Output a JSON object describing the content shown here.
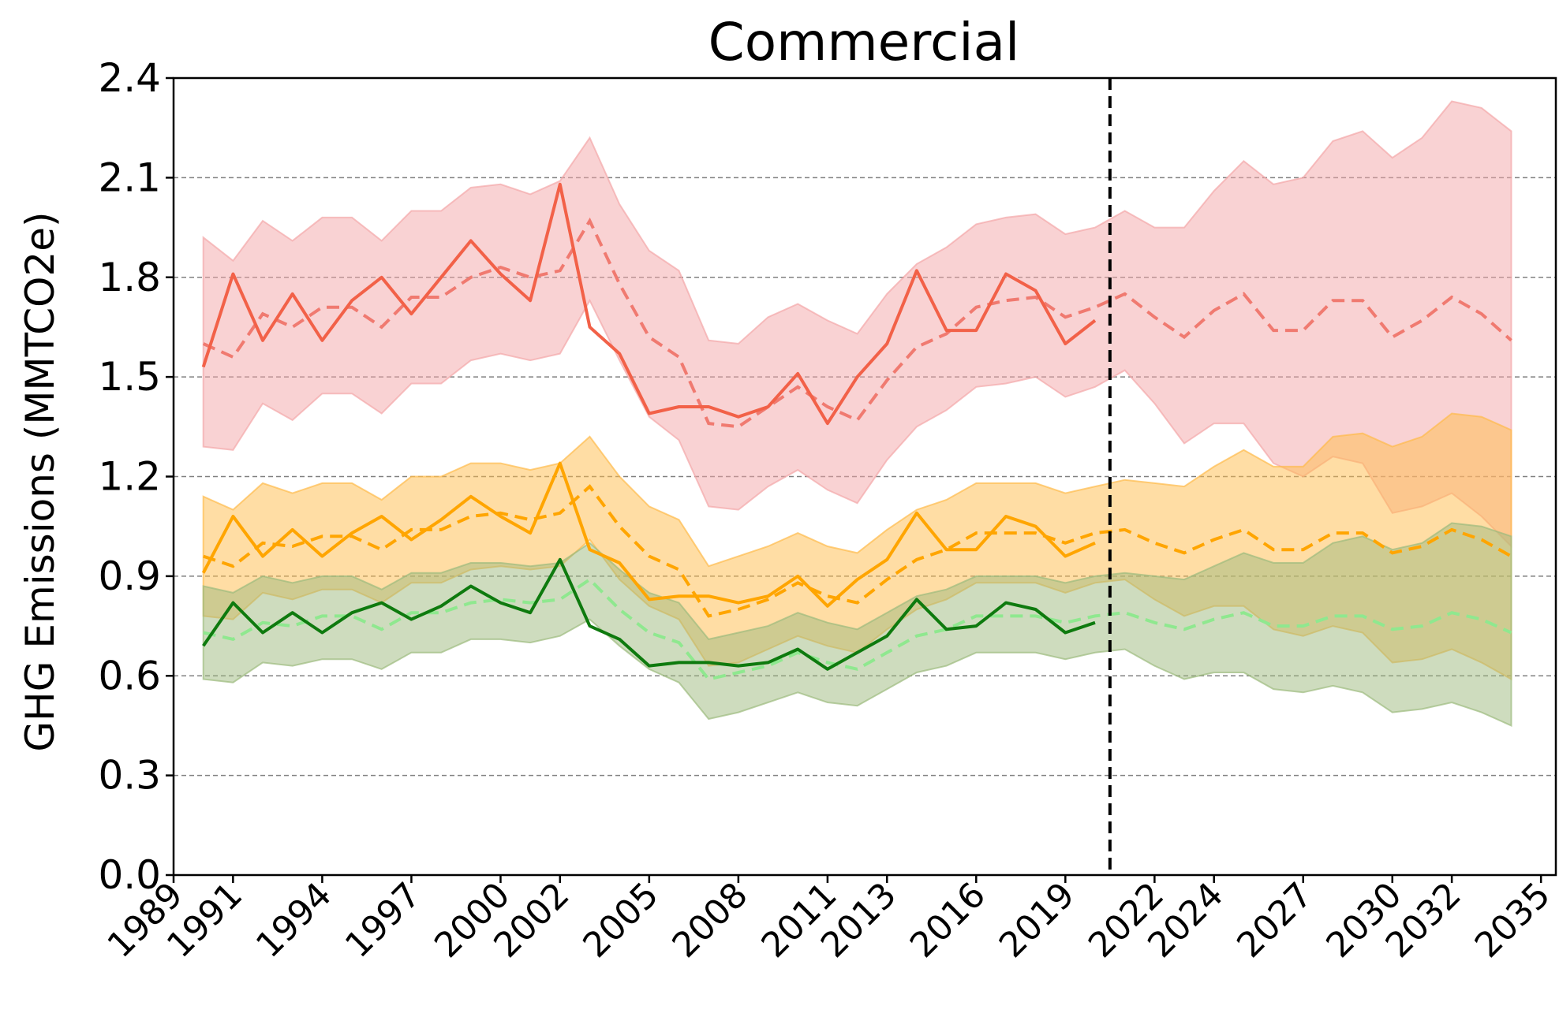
{
  "chart_data": {
    "type": "line",
    "title": "Commercial",
    "ylabel": "GHG Emissions (MMTCO2e)",
    "xlabel": "",
    "ylim": [
      0,
      2.4
    ],
    "xlim": [
      1989.0,
      2035.5
    ],
    "grid": "horizontal-dashed",
    "yticks": [
      0.0,
      0.3,
      0.6,
      0.9,
      1.2,
      1.5,
      1.8,
      2.1,
      2.4
    ],
    "ytick_labels": [
      "0.0",
      "0.3",
      "0.6",
      "0.9",
      "1.2",
      "1.5",
      "1.8",
      "2.1",
      "2.4"
    ],
    "xticks": [
      1989,
      1991,
      1994,
      1997,
      2000,
      2002,
      2005,
      2008,
      2011,
      2013,
      2016,
      2019,
      2022,
      2024,
      2027,
      2030,
      2032,
      2035
    ],
    "xtick_labels": [
      "1989",
      "1991",
      "1994",
      "1997",
      "2000",
      "2002",
      "2005",
      "2008",
      "2011",
      "2013",
      "2016",
      "2019",
      "2022",
      "2024",
      "2027",
      "2030",
      "2032",
      "2035"
    ],
    "split_year": 2020.5,
    "colors": {
      "red": "#f26148",
      "red_fit": "#f07a70",
      "red_band": "#f4a6a8",
      "orange": "#ffa500",
      "orange_band": "#ffbb4a",
      "green": "#0e7a0e",
      "green_fit": "#8fe88f",
      "green_band": "#9dba7d",
      "split_line": "#000000",
      "grid": "#808080"
    },
    "series": [
      {
        "color_key": "red",
        "observed_years": [
          1990,
          1991,
          1992,
          1993,
          1994,
          1995,
          1996,
          1997,
          1998,
          1999,
          2000,
          2001,
          2002,
          2003,
          2004,
          2005,
          2006,
          2007,
          2008,
          2009,
          2010,
          2011,
          2012,
          2013,
          2014,
          2015,
          2016,
          2017,
          2018,
          2019,
          2020
        ],
        "observed": [
          1.53,
          1.81,
          1.61,
          1.75,
          1.61,
          1.73,
          1.8,
          1.69,
          1.8,
          1.91,
          1.81,
          1.73,
          2.08,
          1.65,
          1.57,
          1.39,
          1.41,
          1.41,
          1.38,
          1.41,
          1.51,
          1.36,
          1.5,
          1.6,
          1.82,
          1.64,
          1.64,
          1.81,
          1.76,
          1.6,
          1.67
        ],
        "fit_years": [
          1990,
          1991,
          1992,
          1993,
          1994,
          1995,
          1996,
          1997,
          1998,
          1999,
          2000,
          2001,
          2002,
          2003,
          2004,
          2005,
          2006,
          2007,
          2008,
          2009,
          2010,
          2011,
          2012,
          2013,
          2014,
          2015,
          2016,
          2017,
          2018,
          2019,
          2020,
          2021,
          2022,
          2023,
          2024,
          2025,
          2026,
          2027,
          2028,
          2029,
          2030,
          2031,
          2032,
          2033,
          2034
        ],
        "fit": [
          1.6,
          1.56,
          1.69,
          1.65,
          1.71,
          1.71,
          1.65,
          1.74,
          1.74,
          1.8,
          1.83,
          1.8,
          1.82,
          1.97,
          1.78,
          1.62,
          1.56,
          1.36,
          1.35,
          1.41,
          1.47,
          1.41,
          1.37,
          1.49,
          1.59,
          1.63,
          1.71,
          1.73,
          1.74,
          1.68,
          1.71,
          1.75,
          1.68,
          1.62,
          1.7,
          1.75,
          1.64,
          1.64,
          1.73,
          1.73,
          1.62,
          1.67,
          1.74,
          1.69,
          1.61
        ],
        "band_upper": [
          1.92,
          1.85,
          1.97,
          1.91,
          1.98,
          1.98,
          1.91,
          2.0,
          2.0,
          2.07,
          2.08,
          2.05,
          2.09,
          2.22,
          2.02,
          1.88,
          1.82,
          1.61,
          1.6,
          1.68,
          1.72,
          1.67,
          1.63,
          1.75,
          1.84,
          1.89,
          1.96,
          1.98,
          1.99,
          1.93,
          1.95,
          2.0,
          1.95,
          1.95,
          2.06,
          2.15,
          2.08,
          2.1,
          2.21,
          2.24,
          2.16,
          2.22,
          2.33,
          2.31,
          2.24
        ],
        "band_lower": [
          1.29,
          1.28,
          1.42,
          1.37,
          1.45,
          1.45,
          1.39,
          1.48,
          1.48,
          1.55,
          1.57,
          1.55,
          1.57,
          1.73,
          1.55,
          1.38,
          1.31,
          1.11,
          1.1,
          1.17,
          1.22,
          1.16,
          1.12,
          1.25,
          1.35,
          1.4,
          1.47,
          1.48,
          1.5,
          1.44,
          1.47,
          1.52,
          1.42,
          1.3,
          1.36,
          1.36,
          1.24,
          1.2,
          1.26,
          1.24,
          1.09,
          1.11,
          1.15,
          1.08,
          0.99
        ]
      },
      {
        "color_key": "orange",
        "observed_years": [
          1990,
          1991,
          1992,
          1993,
          1994,
          1995,
          1996,
          1997,
          1998,
          1999,
          2000,
          2001,
          2002,
          2003,
          2004,
          2005,
          2006,
          2007,
          2008,
          2009,
          2010,
          2011,
          2012,
          2013,
          2014,
          2015,
          2016,
          2017,
          2018,
          2019,
          2020
        ],
        "observed": [
          0.91,
          1.08,
          0.96,
          1.04,
          0.96,
          1.03,
          1.08,
          1.01,
          1.07,
          1.14,
          1.08,
          1.03,
          1.24,
          0.98,
          0.94,
          0.83,
          0.84,
          0.84,
          0.82,
          0.84,
          0.9,
          0.81,
          0.89,
          0.95,
          1.09,
          0.98,
          0.98,
          1.08,
          1.05,
          0.96,
          1.0
        ],
        "fit_years": [
          1990,
          1991,
          1992,
          1993,
          1994,
          1995,
          1996,
          1997,
          1998,
          1999,
          2000,
          2001,
          2002,
          2003,
          2004,
          2005,
          2006,
          2007,
          2008,
          2009,
          2010,
          2011,
          2012,
          2013,
          2014,
          2015,
          2016,
          2017,
          2018,
          2019,
          2020,
          2021,
          2022,
          2023,
          2024,
          2025,
          2026,
          2027,
          2028,
          2029,
          2030,
          2031,
          2032,
          2033,
          2034
        ],
        "fit": [
          0.96,
          0.93,
          1.0,
          0.99,
          1.02,
          1.02,
          0.98,
          1.04,
          1.04,
          1.08,
          1.09,
          1.07,
          1.09,
          1.17,
          1.05,
          0.96,
          0.92,
          0.78,
          0.8,
          0.83,
          0.88,
          0.84,
          0.82,
          0.89,
          0.95,
          0.98,
          1.03,
          1.03,
          1.03,
          1.0,
          1.03,
          1.04,
          1.0,
          0.97,
          1.01,
          1.04,
          0.98,
          0.98,
          1.03,
          1.03,
          0.97,
          0.99,
          1.04,
          1.01,
          0.96
        ],
        "band_upper": [
          1.14,
          1.1,
          1.18,
          1.15,
          1.18,
          1.18,
          1.13,
          1.2,
          1.2,
          1.24,
          1.24,
          1.22,
          1.24,
          1.32,
          1.2,
          1.11,
          1.07,
          0.93,
          0.96,
          0.99,
          1.03,
          0.99,
          0.97,
          1.04,
          1.1,
          1.13,
          1.18,
          1.18,
          1.18,
          1.15,
          1.17,
          1.19,
          1.18,
          1.17,
          1.23,
          1.28,
          1.23,
          1.23,
          1.32,
          1.33,
          1.29,
          1.32,
          1.39,
          1.38,
          1.34
        ],
        "band_lower": [
          0.78,
          0.77,
          0.85,
          0.83,
          0.86,
          0.86,
          0.82,
          0.88,
          0.88,
          0.92,
          0.93,
          0.92,
          0.93,
          1.01,
          0.89,
          0.81,
          0.77,
          0.63,
          0.64,
          0.68,
          0.72,
          0.69,
          0.67,
          0.74,
          0.8,
          0.83,
          0.88,
          0.88,
          0.88,
          0.85,
          0.88,
          0.89,
          0.83,
          0.78,
          0.81,
          0.81,
          0.74,
          0.72,
          0.75,
          0.73,
          0.64,
          0.65,
          0.68,
          0.64,
          0.59
        ]
      },
      {
        "color_key": "green",
        "observed_years": [
          1990,
          1991,
          1992,
          1993,
          1994,
          1995,
          1996,
          1997,
          1998,
          1999,
          2000,
          2001,
          2002,
          2003,
          2004,
          2005,
          2006,
          2007,
          2008,
          2009,
          2010,
          2011,
          2012,
          2013,
          2014,
          2015,
          2016,
          2017,
          2018,
          2019,
          2020
        ],
        "observed": [
          0.69,
          0.82,
          0.73,
          0.79,
          0.73,
          0.79,
          0.82,
          0.77,
          0.81,
          0.87,
          0.82,
          0.79,
          0.95,
          0.75,
          0.71,
          0.63,
          0.64,
          0.64,
          0.63,
          0.64,
          0.68,
          0.62,
          0.67,
          0.72,
          0.83,
          0.74,
          0.75,
          0.82,
          0.8,
          0.73,
          0.76
        ],
        "fit_years": [
          1990,
          1991,
          1992,
          1993,
          1994,
          1995,
          1996,
          1997,
          1998,
          1999,
          2000,
          2001,
          2002,
          2003,
          2004,
          2005,
          2006,
          2007,
          2008,
          2009,
          2010,
          2011,
          2012,
          2013,
          2014,
          2015,
          2016,
          2017,
          2018,
          2019,
          2020,
          2021,
          2022,
          2023,
          2024,
          2025,
          2026,
          2027,
          2028,
          2029,
          2030,
          2031,
          2032,
          2033,
          2034
        ],
        "fit": [
          0.73,
          0.71,
          0.76,
          0.75,
          0.78,
          0.78,
          0.74,
          0.79,
          0.79,
          0.82,
          0.83,
          0.82,
          0.83,
          0.89,
          0.8,
          0.73,
          0.7,
          0.59,
          0.61,
          0.63,
          0.67,
          0.64,
          0.62,
          0.67,
          0.72,
          0.74,
          0.78,
          0.78,
          0.78,
          0.76,
          0.78,
          0.79,
          0.76,
          0.74,
          0.77,
          0.79,
          0.75,
          0.75,
          0.78,
          0.78,
          0.74,
          0.75,
          0.79,
          0.77,
          0.73
        ],
        "band_upper": [
          0.87,
          0.85,
          0.9,
          0.88,
          0.9,
          0.9,
          0.86,
          0.91,
          0.91,
          0.94,
          0.94,
          0.93,
          0.94,
          1.0,
          0.92,
          0.85,
          0.82,
          0.71,
          0.73,
          0.75,
          0.79,
          0.76,
          0.74,
          0.79,
          0.84,
          0.86,
          0.9,
          0.9,
          0.9,
          0.88,
          0.9,
          0.91,
          0.9,
          0.89,
          0.93,
          0.97,
          0.94,
          0.94,
          1.0,
          1.02,
          0.98,
          1.0,
          1.06,
          1.05,
          1.02
        ],
        "band_lower": [
          0.59,
          0.58,
          0.64,
          0.63,
          0.65,
          0.65,
          0.62,
          0.67,
          0.67,
          0.71,
          0.71,
          0.7,
          0.72,
          0.77,
          0.69,
          0.62,
          0.58,
          0.47,
          0.49,
          0.52,
          0.55,
          0.52,
          0.51,
          0.56,
          0.61,
          0.63,
          0.67,
          0.67,
          0.67,
          0.65,
          0.67,
          0.68,
          0.63,
          0.59,
          0.61,
          0.61,
          0.56,
          0.55,
          0.57,
          0.55,
          0.49,
          0.5,
          0.52,
          0.49,
          0.45
        ]
      }
    ]
  }
}
